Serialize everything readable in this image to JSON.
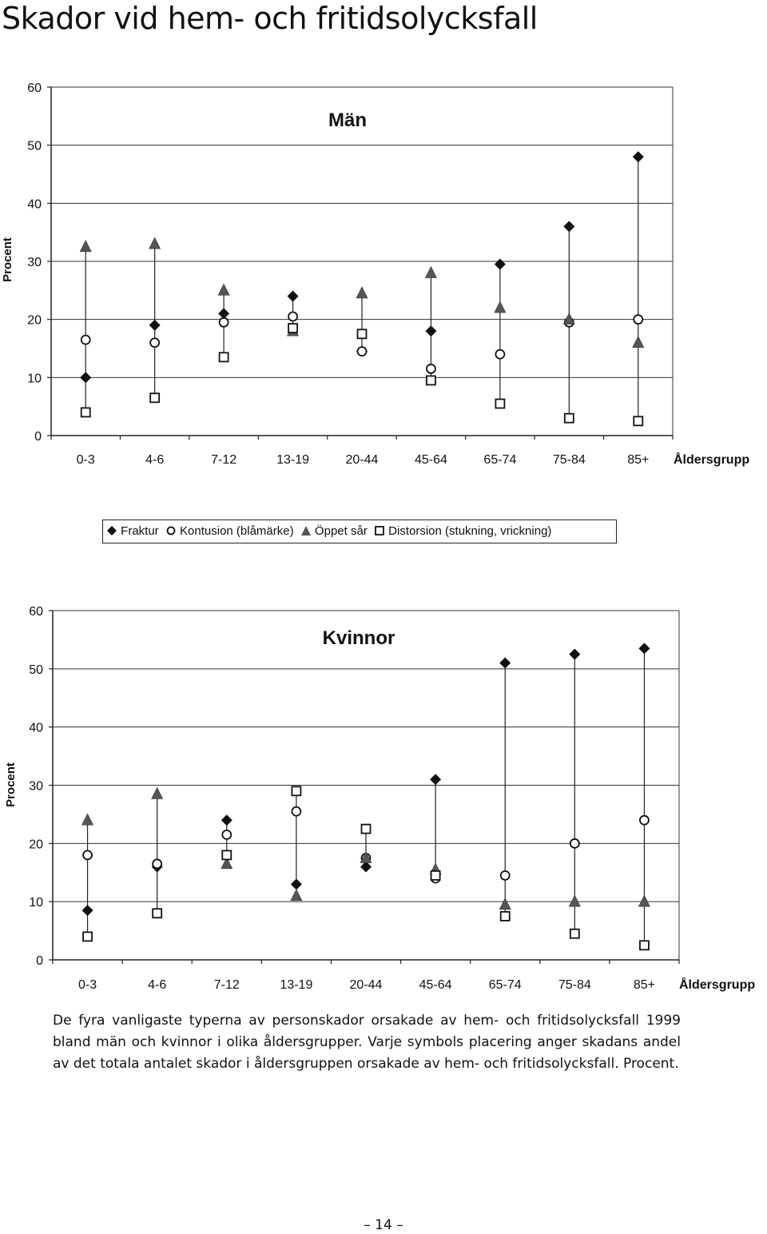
{
  "page": {
    "title": "Skador vid hem- och fritidsolycksfall",
    "caption": "De fyra vanligaste typerna av personskador orsakade av hem- och fritidsolycksfall 1999 bland män och kvinnor i olika åldersgrupper. Varje symbols placering anger skadans andel av det totala antalet skador i åldersgruppen orsakade av hem- och fritidsolycksfall. Procent.",
    "page_number": "– 14 –"
  },
  "legend": {
    "items": [
      {
        "key": "fraktur",
        "label": "Fraktur",
        "symbol": "diamond-icon"
      },
      {
        "key": "kontusion",
        "label": "Kontusion (blåmärke)",
        "symbol": "circle-icon"
      },
      {
        "key": "oppet_sar",
        "label": "Öppet sår",
        "symbol": "triangle-icon"
      },
      {
        "key": "distorsion",
        "label": "Distorsion (stukning, vrickning)",
        "symbol": "square-icon"
      }
    ]
  },
  "chart_data": [
    {
      "type": "scatter",
      "title": "Män",
      "xlabel": "Åldersgrupp",
      "ylabel": "Procent",
      "ylim": [
        0,
        60
      ],
      "yticks": [
        "0",
        "10",
        "20",
        "30",
        "40",
        "50",
        "60"
      ],
      "grid": true,
      "categories": [
        "0-3",
        "4-6",
        "7-12",
        "13-19",
        "20-44",
        "45-64",
        "65-74",
        "75-84",
        "85+"
      ],
      "series": [
        {
          "name": "Fraktur",
          "values": [
            10,
            19,
            21,
            24,
            14.5,
            18,
            29.5,
            36,
            48
          ]
        },
        {
          "name": "Kontusion (blåmärke)",
          "values": [
            16.5,
            16,
            19.5,
            20.5,
            14.5,
            11.5,
            14,
            19.5,
            20
          ]
        },
        {
          "name": "Öppet sår",
          "values": [
            32.5,
            33,
            25,
            18,
            24.5,
            28,
            22,
            20,
            16
          ]
        },
        {
          "name": "Distorsion (stukning, vrickning)",
          "values": [
            4,
            6.5,
            13.5,
            18.5,
            17.5,
            9.5,
            5.5,
            3,
            2.5
          ]
        }
      ]
    },
    {
      "type": "scatter",
      "title": "Kvinnor",
      "xlabel": "Åldersgrupp",
      "ylabel": "Procent",
      "ylim": [
        0,
        60
      ],
      "yticks": [
        "0",
        "10",
        "20",
        "30",
        "40",
        "50",
        "60"
      ],
      "grid": true,
      "categories": [
        "0-3",
        "4-6",
        "7-12",
        "13-19",
        "20-44",
        "45-64",
        "65-74",
        "75-84",
        "85+"
      ],
      "series": [
        {
          "name": "Fraktur",
          "values": [
            8.5,
            16,
            24,
            13,
            16,
            31,
            51,
            52.5,
            53.5
          ]
        },
        {
          "name": "Kontusion (blåmärke)",
          "values": [
            18,
            16.5,
            21.5,
            25.5,
            17.5,
            14,
            14.5,
            20,
            24
          ]
        },
        {
          "name": "Öppet sår",
          "values": [
            24,
            28.5,
            16.5,
            11,
            17.5,
            15.5,
            9.5,
            10,
            10
          ]
        },
        {
          "name": "Distorsion (stukning, vrickning)",
          "values": [
            4,
            8,
            18,
            29,
            22.5,
            14.5,
            7.5,
            4.5,
            2.5
          ]
        }
      ]
    }
  ]
}
